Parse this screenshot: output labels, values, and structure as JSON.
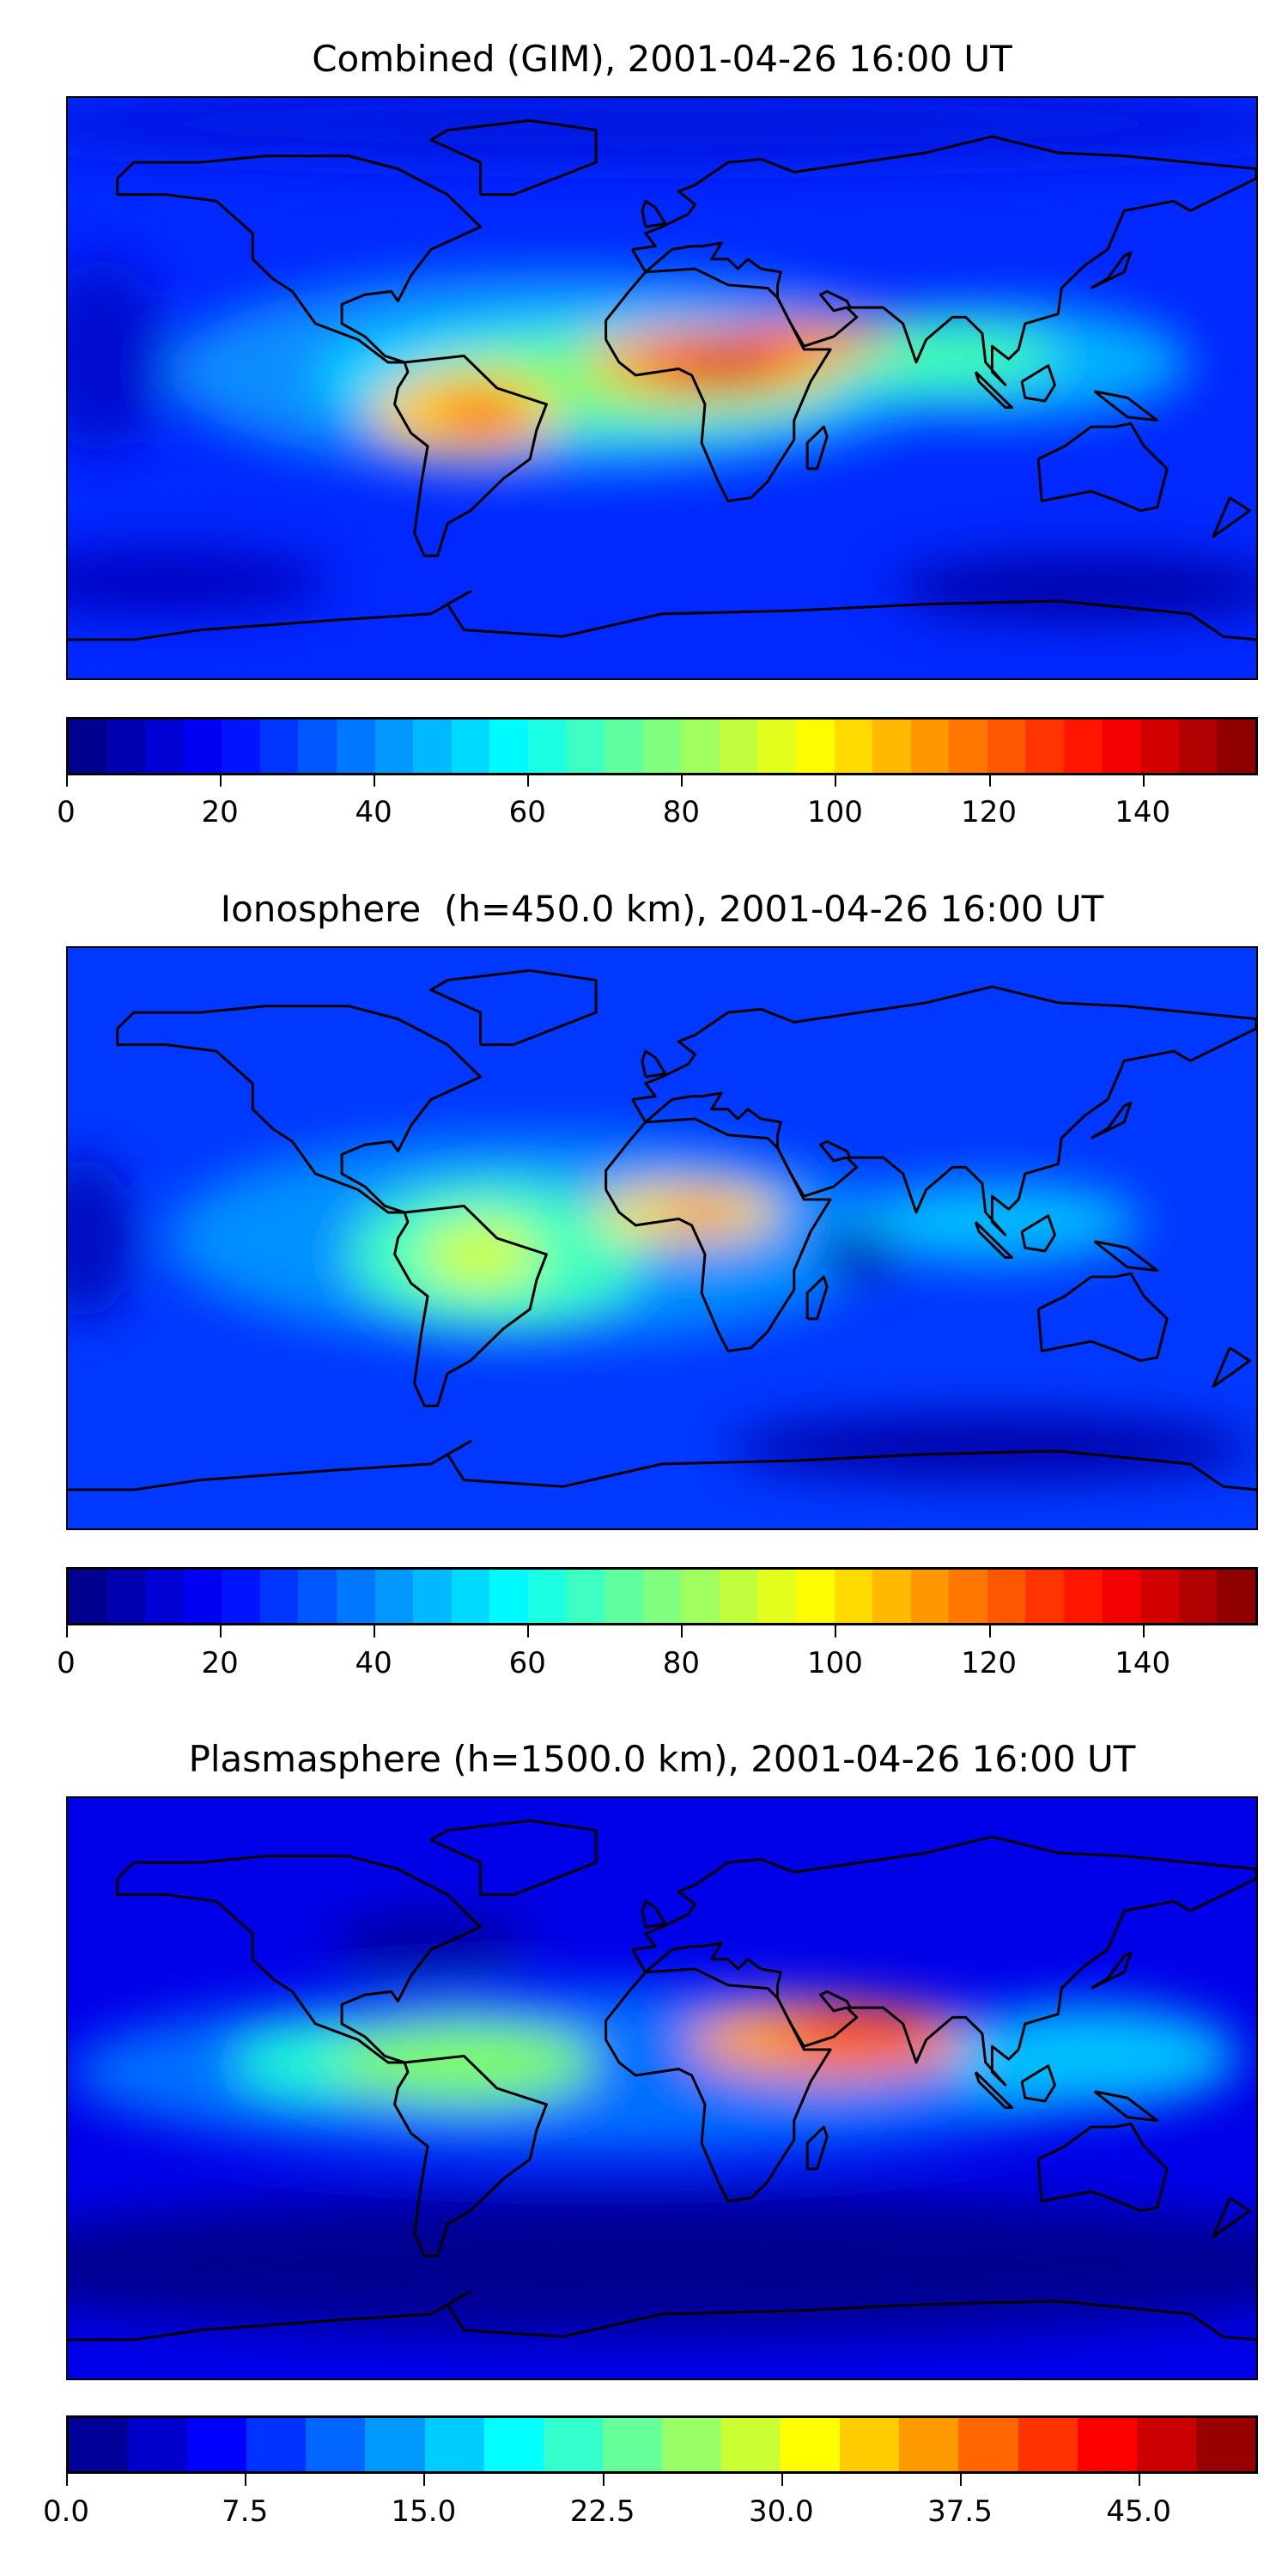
{
  "chart_data": [
    {
      "type": "heatmap",
      "title": "Combined (GIM), 2001-04-26 16:00 UT",
      "xlabel": "",
      "ylabel": "",
      "colorbar": {
        "min": 0,
        "max": 155,
        "step": 5,
        "ticks": [
          0,
          20,
          40,
          60,
          80,
          100,
          120,
          140
        ],
        "tick_labels": [
          "0",
          "20",
          "40",
          "60",
          "80",
          "100",
          "120",
          "140"
        ]
      },
      "colormap": "jet",
      "map_extent": {
        "lon": [
          -180,
          180
        ],
        "lat": [
          -90,
          90
        ]
      },
      "peaks": "max ~150 over central Africa, ~120 over South America"
    },
    {
      "type": "heatmap",
      "title": "Ionosphere  (h=450.0 km), 2001-04-26 16:00 UT",
      "xlabel": "",
      "ylabel": "",
      "colorbar": {
        "min": 0,
        "max": 155,
        "step": 5,
        "ticks": [
          0,
          20,
          40,
          60,
          80,
          100,
          120,
          140
        ],
        "tick_labels": [
          "0",
          "20",
          "40",
          "60",
          "80",
          "100",
          "120",
          "140"
        ]
      },
      "colormap": "jet",
      "map_extent": {
        "lon": [
          -180,
          180
        ],
        "lat": [
          -90,
          90
        ]
      },
      "peaks": "max ~115 over West Africa"
    },
    {
      "type": "heatmap",
      "title": "Plasmasphere (h=1500.0 km), 2001-04-26 16:00 UT",
      "xlabel": "",
      "ylabel": "",
      "colorbar": {
        "min": 0,
        "max": 50,
        "step": 2.5,
        "ticks": [
          0,
          7.5,
          15,
          22.5,
          30,
          37.5,
          45
        ],
        "tick_labels": [
          "0.0",
          "7.5",
          "15.0",
          "22.5",
          "30.0",
          "37.5",
          "45.0"
        ]
      },
      "colormap": "jet",
      "map_extent": {
        "lon": [
          -180,
          180
        ],
        "lat": [
          -90,
          90
        ]
      },
      "peaks": "max ~45 over Arabia / India"
    }
  ]
}
